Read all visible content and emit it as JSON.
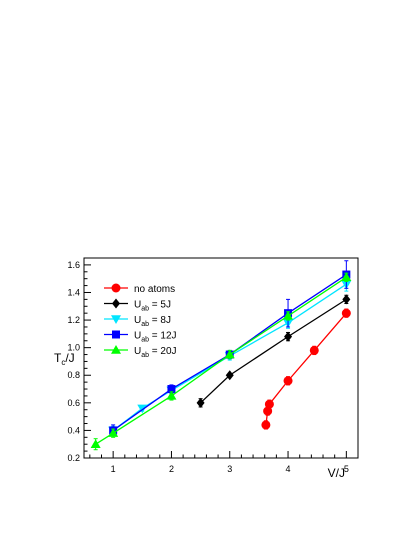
{
  "chart_data": {
    "type": "line",
    "xlabel": "V/J",
    "ylabel": "T",
    "ylabel_sub": "c",
    "ylabel_tail": "/J",
    "xlim": [
      0.5,
      5.2
    ],
    "ylim": [
      0.2,
      1.65
    ],
    "xticks": [
      1,
      2,
      3,
      4,
      5
    ],
    "yticks": [
      0.2,
      0.4,
      0.6,
      0.8,
      1.0,
      1.2,
      1.4,
      1.6
    ],
    "ytick_labels": [
      "0.2",
      "0.4",
      "0.6",
      "0.8",
      "1.0",
      "1.2",
      "1.4",
      "1.6"
    ],
    "grid": false,
    "legend_position": "top-left",
    "series": [
      {
        "name": "no atoms",
        "name_main": "no atoms",
        "name_sub": "",
        "name_tail": "",
        "color": "#ff0000",
        "marker": "circle",
        "x": [
          3.62,
          3.65,
          3.68,
          4.0,
          4.45,
          5.0
        ],
        "y": [
          0.44,
          0.54,
          0.59,
          0.76,
          0.98,
          1.25
        ],
        "err": [
          0.03,
          0.03,
          0.03,
          0.03,
          0.03,
          0.03
        ]
      },
      {
        "name": "U_ab = 5J",
        "name_main": "U",
        "name_sub": "ab",
        "name_tail": " = 5J",
        "color": "#000000",
        "marker": "diamond",
        "x": [
          2.5,
          3.0,
          4.0,
          5.0
        ],
        "y": [
          0.6,
          0.8,
          1.08,
          1.35
        ],
        "err": [
          0.03,
          0.0,
          0.03,
          0.03
        ]
      },
      {
        "name": "U_ab = 8J",
        "name_main": "U",
        "name_sub": "ab",
        "name_tail": " = 8J",
        "color": "#00e5ff",
        "marker": "triangle-down",
        "x": [
          1.0,
          1.5,
          2.0,
          3.0,
          4.0,
          5.0
        ],
        "y": [
          0.4,
          0.56,
          0.69,
          0.94,
          1.18,
          1.46
        ],
        "err": [
          0.03,
          0.02,
          0.02,
          0.03,
          0.04,
          0.05
        ]
      },
      {
        "name": "U_ab = 12J",
        "name_main": "U",
        "name_sub": "ab",
        "name_tail": " = 12J",
        "color": "#0000ff",
        "marker": "square",
        "x": [
          1.0,
          2.0,
          3.0,
          4.0,
          5.0
        ],
        "y": [
          0.4,
          0.7,
          0.95,
          1.25,
          1.53
        ],
        "err": [
          0.04,
          0.03,
          0.03,
          0.1,
          0.1
        ]
      },
      {
        "name": "U_ab = 20J",
        "name_main": "U",
        "name_sub": "ab",
        "name_tail": " = 20J",
        "color": "#00ff00",
        "marker": "triangle-up",
        "x": [
          0.7,
          1.0,
          2.0,
          3.0,
          4.0,
          5.0
        ],
        "y": [
          0.3,
          0.38,
          0.65,
          0.95,
          1.23,
          1.51
        ],
        "err": [
          0.04,
          0.03,
          0.03,
          0.03,
          0.03,
          0.03
        ]
      }
    ]
  }
}
